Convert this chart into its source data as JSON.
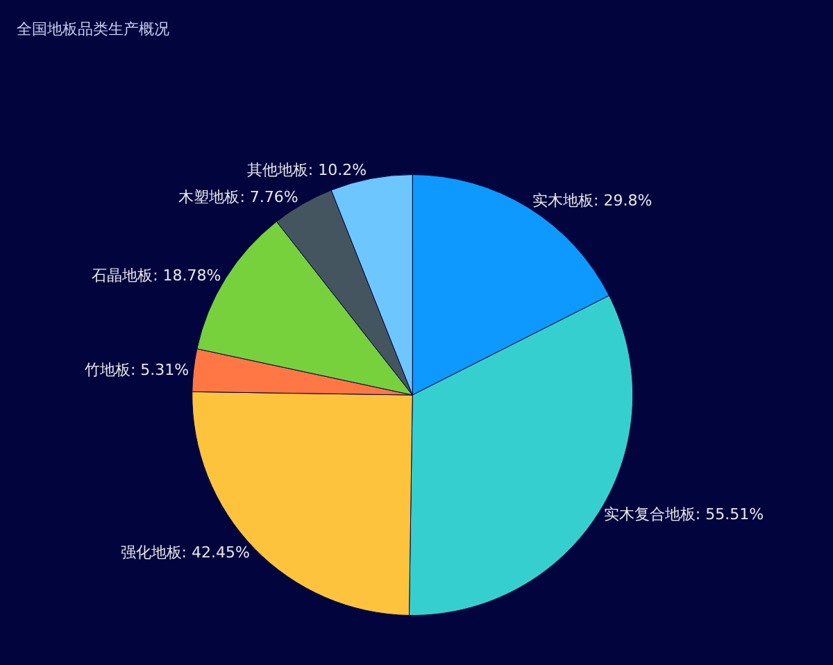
{
  "chart_data": {
    "type": "pie",
    "title": "全国地板品类生产概况",
    "categories": [
      "实木地板",
      "实木复合地板",
      "强化地板",
      "竹地板",
      "石晶地板",
      "木塑地板",
      "其他地板"
    ],
    "values": [
      29.8,
      55.51,
      42.45,
      5.31,
      18.78,
      7.76,
      10.2
    ],
    "value_labels": [
      "29.8%",
      "55.51%",
      "42.45%",
      "5.31%",
      "18.78%",
      "7.76%",
      "10.2%"
    ],
    "colors": [
      "#0d99ff",
      "#36cfcf",
      "#fec33c",
      "#fe7744",
      "#76d13d",
      "#44555f",
      "#6ec6ff"
    ],
    "legend": false
  }
}
